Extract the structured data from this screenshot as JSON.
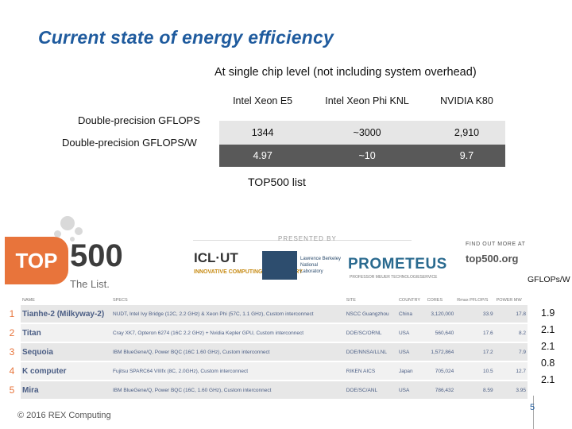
{
  "title": "Current state of energy efficiency",
  "subtitle": "At single chip level (not including system overhead)",
  "comparison": {
    "columns": [
      "Intel Xeon E5",
      "Intel Xeon Phi KNL",
      "NVIDIA K80"
    ],
    "row_labels": [
      "Double-precision GFLOPS",
      "Double-precision GFLOPS/W"
    ],
    "gflops": [
      "1344",
      "~3000",
      "2,910"
    ],
    "gflops_w": [
      "4.97",
      "~10",
      "9.7"
    ]
  },
  "top500_label": "TOP500 list",
  "top500_graphic": {
    "logo_top": "TOP",
    "logo_500": "500",
    "logo_sub": "The List.",
    "presented_by": "PRESENTED BY",
    "icl": "ICL·UT",
    "icl_sub": "INNOVATIVE COMPUTING LABORATORY",
    "berkeley": "Lawrence Berkeley National Laboratory",
    "prometeus": "PROMETEUS",
    "prometeus_sub": "PROFESSOR MEUER TECHNOLOGIESERVICE",
    "find_out": "FIND OUT MORE AT",
    "url": "top500.org",
    "headers": [
      "NAME",
      "SPECS",
      "SITE",
      "COUNTRY",
      "CORES",
      "Rmax PFLOP/S",
      "POWER MW"
    ],
    "rows": [
      {
        "rank": "1",
        "name": "Tianhe-2 (Milkyway-2)",
        "specs": "NUDT, Intel Ivy Bridge (12C, 2.2 GHz) & Xeon Phi (57C, 1.1 GHz), Custom interconnect",
        "site": "NSCC Guangzhou",
        "country": "China",
        "cores": "3,120,000",
        "rmax": "33.9",
        "power": "17.8"
      },
      {
        "rank": "2",
        "name": "Titan",
        "specs": "Cray XK7, Opteron 6274 (16C 2.2 GHz) + Nvidia Kepler GPU, Custom interconnect",
        "site": "DOE/SC/ORNL",
        "country": "USA",
        "cores": "560,640",
        "rmax": "17.6",
        "power": "8.2"
      },
      {
        "rank": "3",
        "name": "Sequoia",
        "specs": "IBM BlueGene/Q, Power BQC (16C 1.60 GHz), Custom interconnect",
        "site": "DOE/NNSA/LLNL",
        "country": "USA",
        "cores": "1,572,864",
        "rmax": "17.2",
        "power": "7.9"
      },
      {
        "rank": "4",
        "name": "K computer",
        "specs": "Fujitsu SPARC64 VIIIfx (8C, 2.0GHz), Custom interconnect",
        "site": "RIKEN AICS",
        "country": "Japan",
        "cores": "705,024",
        "rmax": "10.5",
        "power": "12.7"
      },
      {
        "rank": "5",
        "name": "Mira",
        "specs": "IBM BlueGene/Q, Power BQC (16C, 1.60 GHz), Custom interconnect",
        "site": "DOE/SC/ANL",
        "country": "USA",
        "cores": "786,432",
        "rmax": "8.59",
        "power": "3.95"
      }
    ]
  },
  "gflops_w_label": "GFLOPs/W",
  "gflops_w_values": [
    "1.9",
    "2.1",
    "2.1",
    "0.8",
    "2.1"
  ],
  "footer": "© 2016 REX Computing",
  "page_number": "5"
}
